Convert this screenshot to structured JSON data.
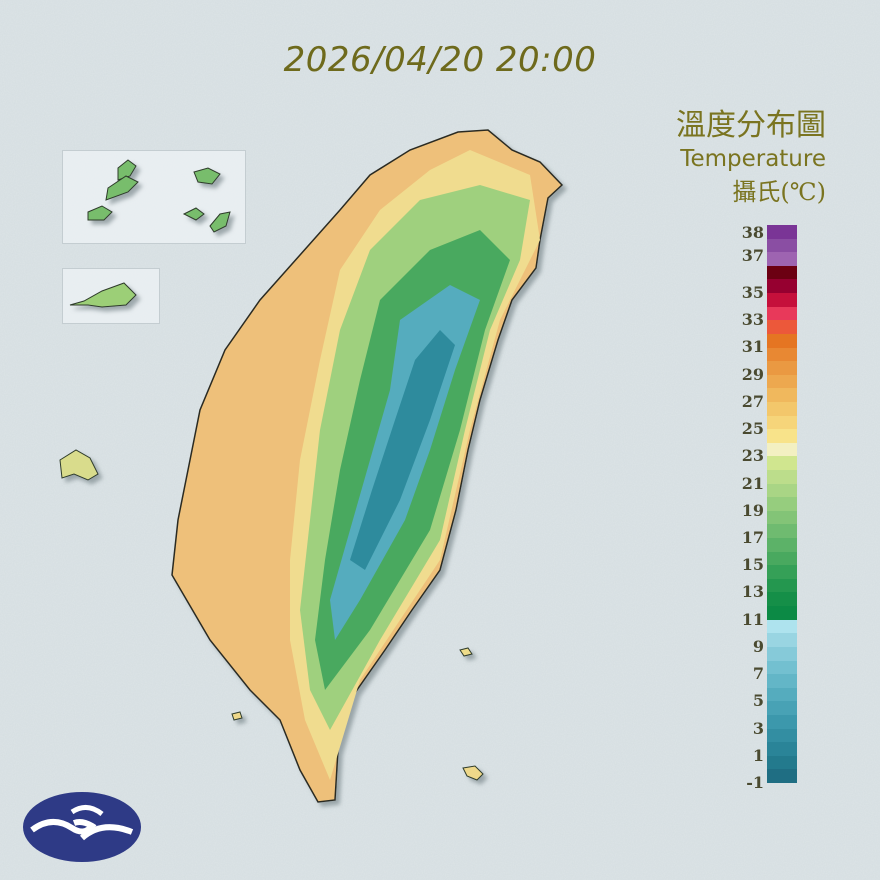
{
  "header": {
    "timestamp": "2026/04/20 20:00"
  },
  "legend": {
    "title_zh": "溫度分布圖",
    "title_en": "Temperature",
    "unit": "攝氏(℃)",
    "labels": [
      "-1",
      "1",
      "3",
      "5",
      "7",
      "9",
      "11",
      "13",
      "15",
      "17",
      "19",
      "21",
      "23",
      "25",
      "27",
      "29",
      "31",
      "33",
      "35",
      "37",
      "38"
    ],
    "colors": [
      "#1f6e83",
      "#237a8d",
      "#2a8498",
      "#338ea2",
      "#3c98ac",
      "#48a2b5",
      "#55acbe",
      "#63b6c7",
      "#73c0d0",
      "#86cad9",
      "#99d5e2",
      "#aee3ee",
      "#0c8a45",
      "#158f48",
      "#24974f",
      "#35a057",
      "#49a95f",
      "#5cb268",
      "#6fbb70",
      "#83c477",
      "#96cd7e",
      "#a9d585",
      "#bcdd8b",
      "#d0e68f",
      "#f3f0c2",
      "#f8e38a",
      "#f6d57a",
      "#f3c76b",
      "#f0b85d",
      "#eda84f",
      "#ea9942",
      "#e88833",
      "#e57522",
      "#ec583a",
      "#e8395a",
      "#c5103b",
      "#960030",
      "#6c0012",
      "#9e64b1",
      "#8a4ea3",
      "#7a3596"
    ]
  },
  "insets": [
    "Matsu",
    "Kinmen"
  ],
  "logo": "cwa-logo"
}
